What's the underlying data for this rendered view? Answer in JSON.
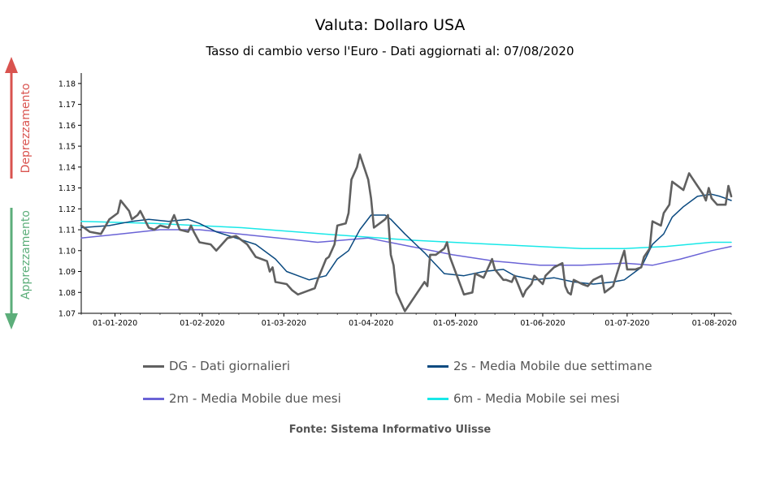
{
  "header": {
    "title": "Valuta: Dollaro USA",
    "subtitle": "Tasso di cambio verso l'Euro - Dati aggiornati al: 07/08/2020"
  },
  "side_labels": {
    "up": "Deprezzamento",
    "down": "Apprezzamento",
    "up_color": "#d9534f",
    "down_color": "#5cae7a"
  },
  "footer": {
    "source": "Fonte: Sistema Informativo Ulisse"
  },
  "chart_data": {
    "type": "line",
    "x_type": "date",
    "x_range": [
      "2019-12-20",
      "2020-08-07"
    ],
    "ylim": [
      1.07,
      1.185
    ],
    "yticks": [
      1.07,
      1.08,
      1.09,
      1.1,
      1.11,
      1.12,
      1.13,
      1.14,
      1.15,
      1.16,
      1.17,
      1.18
    ],
    "xticks": [
      {
        "date": "2020-01-01",
        "label": "01-01-2020"
      },
      {
        "date": "2020-02-01",
        "label": "01-02-2020"
      },
      {
        "date": "2020-03-01",
        "label": "01-03-2020"
      },
      {
        "date": "2020-04-01",
        "label": "01-04-2020"
      },
      {
        "date": "2020-05-01",
        "label": "01-05-2020"
      },
      {
        "date": "2020-06-01",
        "label": "01-06-2020"
      },
      {
        "date": "2020-07-01",
        "label": "01-07-2020"
      },
      {
        "date": "2020-08-01",
        "label": "01-08-2020"
      }
    ],
    "grid": false,
    "legend_position": "bottom",
    "series": [
      {
        "name": "DG - Dati giornalieri",
        "color": "#606060",
        "points": [
          [
            "2019-12-20",
            1.112
          ],
          [
            "2019-12-23",
            1.109
          ],
          [
            "2019-12-27",
            1.108
          ],
          [
            "2019-12-30",
            1.115
          ],
          [
            "2020-01-02",
            1.118
          ],
          [
            "2020-01-03",
            1.124
          ],
          [
            "2020-01-06",
            1.119
          ],
          [
            "2020-01-07",
            1.115
          ],
          [
            "2020-01-09",
            1.117
          ],
          [
            "2020-01-10",
            1.119
          ],
          [
            "2020-01-13",
            1.111
          ],
          [
            "2020-01-15",
            1.11
          ],
          [
            "2020-01-17",
            1.112
          ],
          [
            "2020-01-20",
            1.111
          ],
          [
            "2020-01-22",
            1.117
          ],
          [
            "2020-01-24",
            1.11
          ],
          [
            "2020-01-27",
            1.109
          ],
          [
            "2020-01-28",
            1.112
          ],
          [
            "2020-01-29",
            1.109
          ],
          [
            "2020-01-31",
            1.104
          ],
          [
            "2020-02-04",
            1.103
          ],
          [
            "2020-02-06",
            1.1
          ],
          [
            "2020-02-10",
            1.106
          ],
          [
            "2020-02-13",
            1.107
          ],
          [
            "2020-02-17",
            1.103
          ],
          [
            "2020-02-20",
            1.097
          ],
          [
            "2020-02-24",
            1.095
          ],
          [
            "2020-02-25",
            1.09
          ],
          [
            "2020-02-26",
            1.092
          ],
          [
            "2020-02-27",
            1.085
          ],
          [
            "2020-03-02",
            1.084
          ],
          [
            "2020-03-04",
            1.081
          ],
          [
            "2020-03-06",
            1.079
          ],
          [
            "2020-03-10",
            1.081
          ],
          [
            "2020-03-12",
            1.082
          ],
          [
            "2020-03-13",
            1.086
          ],
          [
            "2020-03-16",
            1.096
          ],
          [
            "2020-03-17",
            1.097
          ],
          [
            "2020-03-19",
            1.103
          ],
          [
            "2020-03-20",
            1.112
          ],
          [
            "2020-03-23",
            1.113
          ],
          [
            "2020-03-24",
            1.118
          ],
          [
            "2020-03-25",
            1.134
          ],
          [
            "2020-03-27",
            1.14
          ],
          [
            "2020-03-28",
            1.146
          ],
          [
            "2020-03-31",
            1.134
          ],
          [
            "2020-04-01",
            1.125
          ],
          [
            "2020-04-02",
            1.111
          ],
          [
            "2020-04-06",
            1.115
          ],
          [
            "2020-04-07",
            1.117
          ],
          [
            "2020-04-08",
            1.098
          ],
          [
            "2020-04-09",
            1.093
          ],
          [
            "2020-04-10",
            1.08
          ],
          [
            "2020-04-13",
            1.071
          ],
          [
            "2020-04-15",
            1.075
          ],
          [
            "2020-04-17",
            1.079
          ],
          [
            "2020-04-20",
            1.085
          ],
          [
            "2020-04-21",
            1.083
          ],
          [
            "2020-04-22",
            1.098
          ],
          [
            "2020-04-24",
            1.098
          ],
          [
            "2020-04-27",
            1.101
          ],
          [
            "2020-04-28",
            1.104
          ],
          [
            "2020-04-29",
            1.097
          ],
          [
            "2020-05-04",
            1.079
          ],
          [
            "2020-05-07",
            1.08
          ],
          [
            "2020-05-08",
            1.089
          ],
          [
            "2020-05-11",
            1.087
          ],
          [
            "2020-05-13",
            1.093
          ],
          [
            "2020-05-14",
            1.096
          ],
          [
            "2020-05-15",
            1.091
          ],
          [
            "2020-05-18",
            1.086
          ],
          [
            "2020-05-19",
            1.086
          ],
          [
            "2020-05-21",
            1.085
          ],
          [
            "2020-05-22",
            1.088
          ],
          [
            "2020-05-25",
            1.078
          ],
          [
            "2020-05-26",
            1.081
          ],
          [
            "2020-05-28",
            1.084
          ],
          [
            "2020-05-29",
            1.088
          ],
          [
            "2020-06-01",
            1.084
          ],
          [
            "2020-06-02",
            1.088
          ],
          [
            "2020-06-05",
            1.092
          ],
          [
            "2020-06-08",
            1.094
          ],
          [
            "2020-06-09",
            1.083
          ],
          [
            "2020-06-10",
            1.08
          ],
          [
            "2020-06-11",
            1.079
          ],
          [
            "2020-06-12",
            1.086
          ],
          [
            "2020-06-15",
            1.084
          ],
          [
            "2020-06-17",
            1.083
          ],
          [
            "2020-06-19",
            1.086
          ],
          [
            "2020-06-22",
            1.088
          ],
          [
            "2020-06-23",
            1.08
          ],
          [
            "2020-06-24",
            1.081
          ],
          [
            "2020-06-26",
            1.083
          ],
          [
            "2020-06-29",
            1.096
          ],
          [
            "2020-06-30",
            1.1
          ],
          [
            "2020-07-01",
            1.091
          ],
          [
            "2020-07-04",
            1.091
          ],
          [
            "2020-07-06",
            1.092
          ],
          [
            "2020-07-07",
            1.097
          ],
          [
            "2020-07-09",
            1.101
          ],
          [
            "2020-07-10",
            1.114
          ],
          [
            "2020-07-13",
            1.112
          ],
          [
            "2020-07-14",
            1.118
          ],
          [
            "2020-07-16",
            1.122
          ],
          [
            "2020-07-17",
            1.133
          ],
          [
            "2020-07-20",
            1.13
          ],
          [
            "2020-07-21",
            1.129
          ],
          [
            "2020-07-23",
            1.137
          ],
          [
            "2020-07-24",
            1.135
          ],
          [
            "2020-07-26",
            1.131
          ],
          [
            "2020-07-28",
            1.127
          ],
          [
            "2020-07-29",
            1.124
          ],
          [
            "2020-07-30",
            1.13
          ],
          [
            "2020-07-31",
            1.125
          ],
          [
            "2020-08-02",
            1.122
          ],
          [
            "2020-08-03",
            1.122
          ],
          [
            "2020-08-05",
            1.122
          ],
          [
            "2020-08-06",
            1.131
          ],
          [
            "2020-08-07",
            1.126
          ]
        ]
      },
      {
        "name": "2s - Media Mobile due settimane",
        "color": "#0b4a80",
        "points": [
          [
            "2019-12-20",
            1.111
          ],
          [
            "2019-12-30",
            1.112
          ],
          [
            "2020-01-07",
            1.114
          ],
          [
            "2020-01-13",
            1.115
          ],
          [
            "2020-01-20",
            1.114
          ],
          [
            "2020-01-27",
            1.115
          ],
          [
            "2020-01-31",
            1.113
          ],
          [
            "2020-02-06",
            1.109
          ],
          [
            "2020-02-13",
            1.106
          ],
          [
            "2020-02-20",
            1.103
          ],
          [
            "2020-02-27",
            1.096
          ],
          [
            "2020-03-02",
            1.09
          ],
          [
            "2020-03-06",
            1.088
          ],
          [
            "2020-03-10",
            1.086
          ],
          [
            "2020-03-16",
            1.088
          ],
          [
            "2020-03-20",
            1.096
          ],
          [
            "2020-03-24",
            1.1
          ],
          [
            "2020-03-28",
            1.11
          ],
          [
            "2020-04-01",
            1.117
          ],
          [
            "2020-04-06",
            1.117
          ],
          [
            "2020-04-08",
            1.115
          ],
          [
            "2020-04-13",
            1.108
          ],
          [
            "2020-04-20",
            1.099
          ],
          [
            "2020-04-27",
            1.089
          ],
          [
            "2020-05-04",
            1.088
          ],
          [
            "2020-05-11",
            1.09
          ],
          [
            "2020-05-18",
            1.091
          ],
          [
            "2020-05-22",
            1.088
          ],
          [
            "2020-05-29",
            1.086
          ],
          [
            "2020-06-05",
            1.087
          ],
          [
            "2020-06-12",
            1.085
          ],
          [
            "2020-06-19",
            1.084
          ],
          [
            "2020-06-26",
            1.085
          ],
          [
            "2020-06-30",
            1.086
          ],
          [
            "2020-07-06",
            1.092
          ],
          [
            "2020-07-10",
            1.103
          ],
          [
            "2020-07-14",
            1.108
          ],
          [
            "2020-07-17",
            1.116
          ],
          [
            "2020-07-21",
            1.121
          ],
          [
            "2020-07-26",
            1.126
          ],
          [
            "2020-07-31",
            1.127
          ],
          [
            "2020-08-03",
            1.126
          ],
          [
            "2020-08-07",
            1.124
          ]
        ]
      },
      {
        "name": "2m - Media Mobile due mesi",
        "color": "#6a63d6",
        "points": [
          [
            "2019-12-20",
            1.106
          ],
          [
            "2020-01-03",
            1.108
          ],
          [
            "2020-01-17",
            1.11
          ],
          [
            "2020-01-31",
            1.11
          ],
          [
            "2020-02-14",
            1.108
          ],
          [
            "2020-02-28",
            1.106
          ],
          [
            "2020-03-13",
            1.104
          ],
          [
            "2020-03-31",
            1.106
          ],
          [
            "2020-04-15",
            1.102
          ],
          [
            "2020-04-30",
            1.098
          ],
          [
            "2020-05-15",
            1.095
          ],
          [
            "2020-05-31",
            1.093
          ],
          [
            "2020-06-15",
            1.093
          ],
          [
            "2020-06-30",
            1.094
          ],
          [
            "2020-07-10",
            1.093
          ],
          [
            "2020-07-20",
            1.096
          ],
          [
            "2020-07-31",
            1.1
          ],
          [
            "2020-08-07",
            1.102
          ]
        ]
      },
      {
        "name": "6m - Media Mobile sei mesi",
        "color": "#18e8e8",
        "points": [
          [
            "2019-12-20",
            1.114
          ],
          [
            "2020-01-15",
            1.113
          ],
          [
            "2020-02-15",
            1.111
          ],
          [
            "2020-03-15",
            1.108
          ],
          [
            "2020-04-15",
            1.105
          ],
          [
            "2020-05-15",
            1.103
          ],
          [
            "2020-06-15",
            1.101
          ],
          [
            "2020-06-30",
            1.101
          ],
          [
            "2020-07-15",
            1.102
          ],
          [
            "2020-07-31",
            1.104
          ],
          [
            "2020-08-07",
            1.104
          ]
        ]
      }
    ]
  }
}
